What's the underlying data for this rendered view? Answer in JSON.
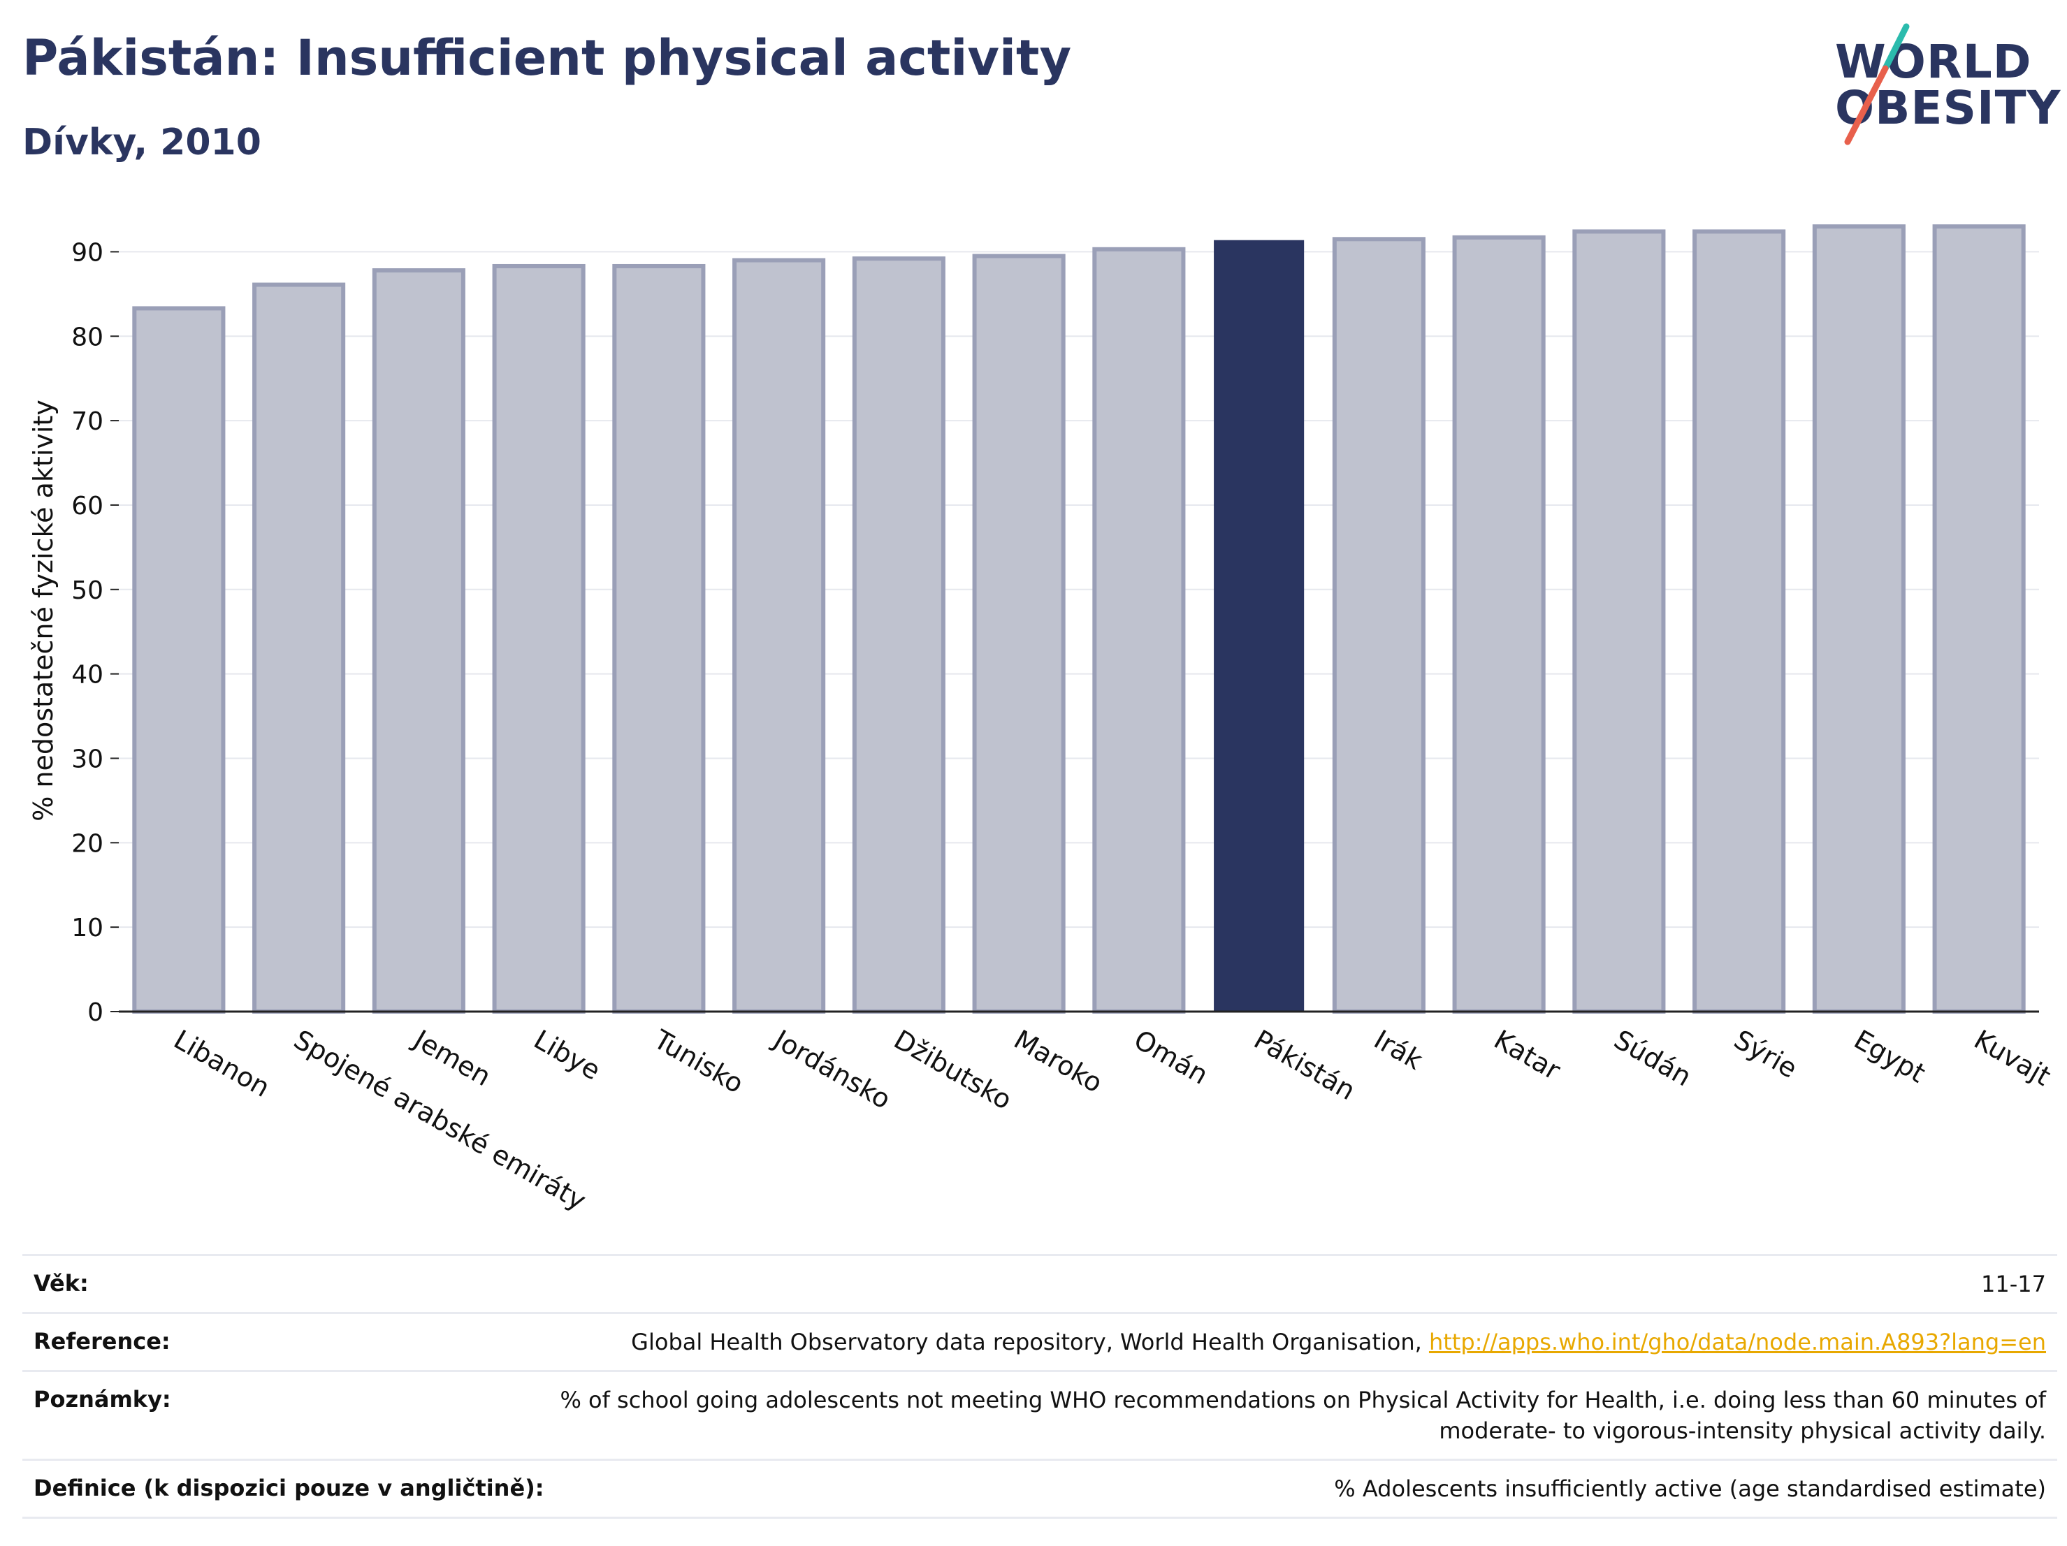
{
  "header": {
    "title": "Pákistán: Insufficient physical activity",
    "subtitle": "Dívky, 2010"
  },
  "logo": {
    "line1": "WORLD",
    "line2": "OBESITY"
  },
  "colors": {
    "highlight": "#2a3560",
    "bar": "#bfc2cf",
    "bar_border": "#9a9fb7",
    "link": "#e8a800",
    "accent_teal": "#2bbbad",
    "accent_red": "#e8604c"
  },
  "chart_data": {
    "type": "bar",
    "ylabel": "% nedostatečné fyzické aktivity",
    "ylim": [
      0,
      95
    ],
    "yticks": [
      0,
      10,
      20,
      30,
      40,
      50,
      60,
      70,
      80,
      90
    ],
    "grid": true,
    "highlight": "Pákistán",
    "categories": [
      "Libanon",
      "Spojené arabské emiráty",
      "Jemen",
      "Libye",
      "Tunisko",
      "Jordánsko",
      "Džibutsko",
      "Maroko",
      "Omán",
      "Pákistán",
      "Irák",
      "Katar",
      "Súdán",
      "Sýrie",
      "Egypt",
      "Kuvajt"
    ],
    "values": [
      83.3,
      86.1,
      87.8,
      88.3,
      88.3,
      89.0,
      89.2,
      89.5,
      90.3,
      91.3,
      91.5,
      91.7,
      92.4,
      92.4,
      93.0,
      93.0
    ]
  },
  "info_table": {
    "age_label": "Věk:",
    "age_value": "11-17",
    "reference_label": "Reference:",
    "reference_text": "Global Health Observatory data repository, World Health Organisation, ",
    "reference_link": "http://apps.who.int/gho/data/node.main.A893?lang=en",
    "notes_label": "Poznámky:",
    "notes_line1": "% of school going adolescents not meeting WHO recommendations on Physical Activity for Health, i.e. doing less than 60 minutes of",
    "notes_line2": "moderate- to vigorous-intensity physical activity daily.",
    "definition_label": "Definice (k dispozici pouze v angličtině):",
    "definition_value": "% Adolescents insufficiently active (age standardised estimate)"
  }
}
